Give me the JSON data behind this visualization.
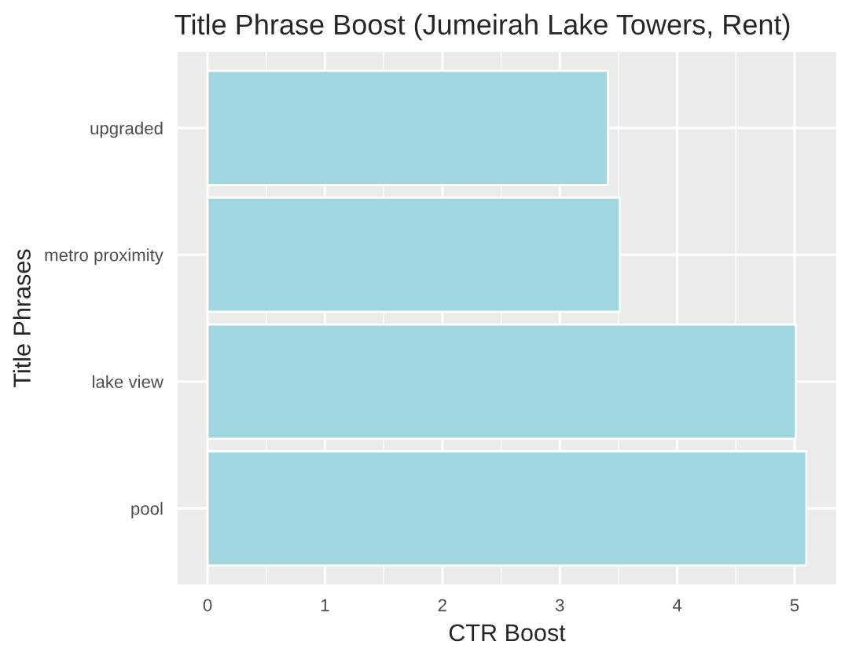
{
  "chart_data": {
    "type": "bar",
    "orientation": "horizontal",
    "title": "Title Phrase Boost (Jumeirah Lake Towers, Rent)",
    "xlabel": "CTR Boost",
    "ylabel": "Title Phrases",
    "categories": [
      "upgraded",
      "metro proximity",
      "lake view",
      "pool"
    ],
    "values": [
      3.41,
      3.51,
      5.01,
      5.1
    ],
    "color": "#a1d5df",
    "xlim": [
      -0.255,
      5.355
    ],
    "xticks": [
      0,
      1,
      2,
      3,
      4,
      5
    ],
    "grid": true
  }
}
